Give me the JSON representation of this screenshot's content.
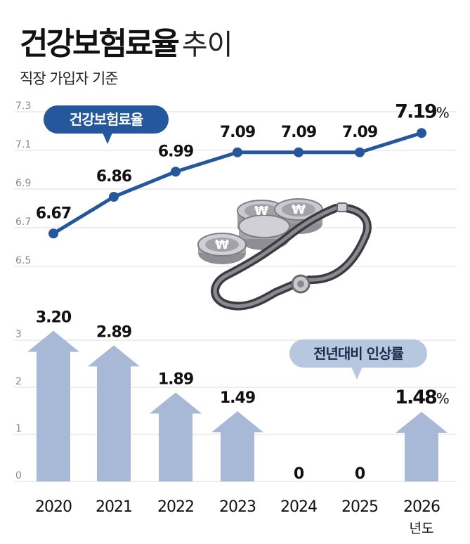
{
  "header": {
    "title_bold": "건강보험료율",
    "title_light": "추이",
    "subtitle": "직장 가입자 기준"
  },
  "colors": {
    "line": "#24579b",
    "arrow": "#a7b9d6",
    "badge_primary": "#24579b",
    "badge_secondary": "#b8c7e0",
    "grid": "#dcdcdc"
  },
  "chart_data": [
    {
      "type": "line",
      "badge": "건강보험료율",
      "categories": [
        "2020",
        "2021",
        "2022",
        "2023",
        "2024",
        "2025",
        "2026"
      ],
      "values": [
        6.67,
        6.86,
        6.99,
        7.09,
        7.09,
        7.09,
        7.19
      ],
      "value_labels": [
        "6.67",
        "6.86",
        "6.99",
        "7.09",
        "7.09",
        "7.09",
        "7.19"
      ],
      "last_value_suffix": "%",
      "ylim": [
        6.5,
        7.3
      ],
      "yticks": [
        "6.5",
        "6.7",
        "6.9",
        "7.1",
        "7.3"
      ],
      "grid": true,
      "illustration_icons": [
        "coin-stack-icon",
        "stethoscope-icon"
      ],
      "coin_symbol": "₩"
    },
    {
      "type": "bar",
      "badge": "전년대비 인상률",
      "categories": [
        "2020",
        "2021",
        "2022",
        "2023",
        "2024",
        "2025",
        "2026"
      ],
      "values": [
        3.2,
        2.89,
        1.89,
        1.49,
        0,
        0,
        1.48
      ],
      "value_labels": [
        "3.20",
        "2.89",
        "1.89",
        "1.49",
        "0",
        "0",
        "1.48"
      ],
      "last_value_suffix": "%",
      "ylim": [
        0,
        3
      ],
      "yticks": [
        "0",
        "1",
        "2",
        "3"
      ],
      "grid": true,
      "x_unit": "년도",
      "mark_shape": "arrow-up"
    }
  ]
}
